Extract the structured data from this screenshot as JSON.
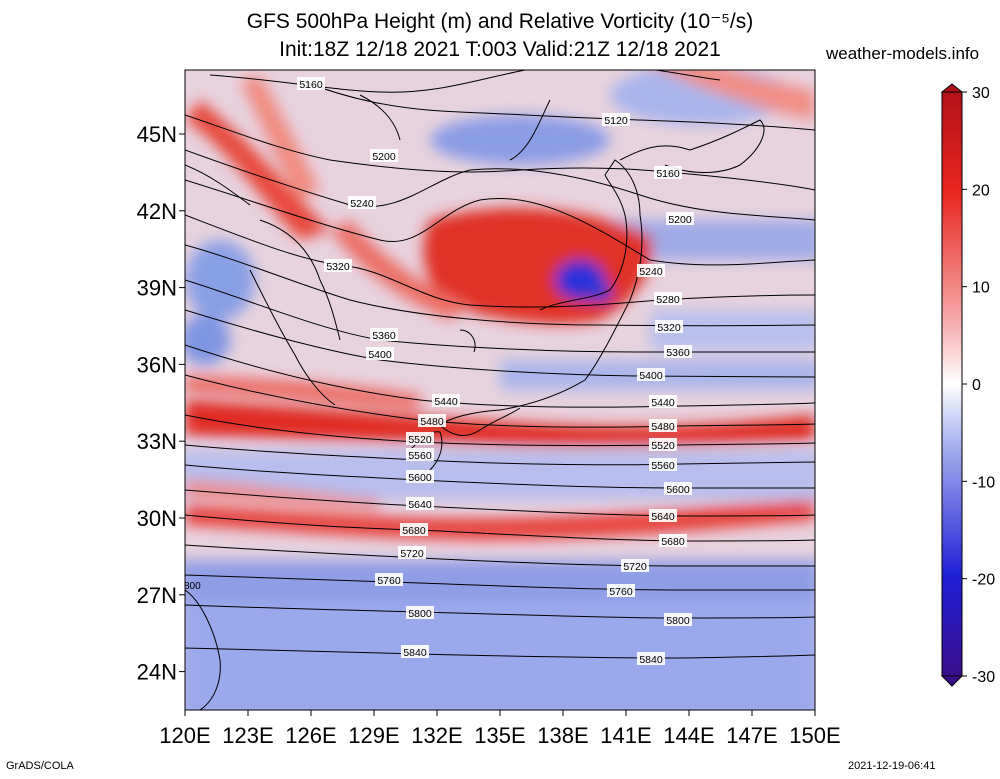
{
  "title": {
    "line1": "GFS 500hPa Height (m) and Relative Vorticity (10⁻⁵/s)",
    "line2": "Init:18Z 12/18 2021 T:003 Valid:21Z 12/18 2021"
  },
  "site_label": "weather-models.info",
  "map": {
    "lon_range": [
      120,
      150
    ],
    "lat_range": [
      22.5,
      47.5
    ],
    "lon_ticks": [
      "120E",
      "123E",
      "126E",
      "129E",
      "132E",
      "135E",
      "138E",
      "141E",
      "144E",
      "147E",
      "150E"
    ],
    "lat_ticks": [
      "24N",
      "27N",
      "30N",
      "33N",
      "36N",
      "39N",
      "42N",
      "45N"
    ],
    "contour_labels": [
      "5120",
      "5160",
      "5200",
      "5240",
      "5280",
      "5320",
      "5360",
      "5400",
      "5440",
      "5480",
      "5520",
      "5560",
      "5600",
      "5640",
      "5680",
      "5720",
      "5760",
      "5800",
      "5840"
    ],
    "edge_label": "800"
  },
  "colorbar": {
    "ticks": [
      "30",
      "20",
      "10",
      "0",
      "-10",
      "-20",
      "-30"
    ],
    "range": [
      -30,
      30
    ],
    "colors": [
      "#3a0d8c",
      "#1f1fd6",
      "#7b8ee6",
      "#ffffff",
      "#f08a8a",
      "#e8251f",
      "#b3121a"
    ]
  },
  "footer": {
    "left": "GrADS/COLA",
    "right": "2021-12-19-06:41"
  }
}
